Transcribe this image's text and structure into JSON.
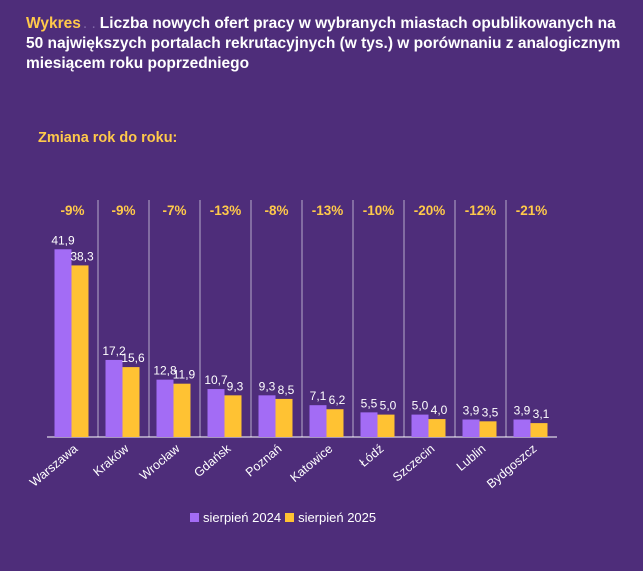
{
  "header": {
    "label": "Wykres",
    "separator": ". .",
    "title": "Liczba nowych ofert pracy w wybranych miastach opublikowanych na 50 największych portalach rekrutacyjnych (w tys.) w porównaniu z analogicznym miesiącem roku poprzedniego"
  },
  "subtitle": "Zmiana rok do roku:",
  "colors": {
    "background": "#4e2d7a",
    "series_2024": "#a36cf5",
    "series_2025": "#ffc233",
    "accent": "#ffc94a"
  },
  "chart_data": {
    "type": "bar",
    "title": "Liczba nowych ofert pracy w wybranych miastach opublikowanych na 50 największych portalach rekrutacyjnych (w tys.)",
    "xlabel": "",
    "ylabel": "",
    "ylim": [
      0,
      45
    ],
    "categories": [
      "Warszawa",
      "Kraków",
      "Wrocław",
      "Gdańsk",
      "Poznań",
      "Katowice",
      "Łódź",
      "Szczecin",
      "Lublin",
      "Bydgoszcz"
    ],
    "series": [
      {
        "name": "sierpień 2024",
        "values": [
          41.9,
          17.2,
          12.8,
          10.7,
          9.3,
          7.1,
          5.5,
          5.0,
          3.9,
          3.9
        ],
        "labels": [
          "41,9",
          "17,2",
          "12,8",
          "10,7",
          "9,3",
          "7,1",
          "5,5",
          "5,0",
          "3,9",
          "3,9"
        ]
      },
      {
        "name": "sierpień 2025",
        "values": [
          38.3,
          15.6,
          11.9,
          9.3,
          8.5,
          6.2,
          5.0,
          4.0,
          3.5,
          3.1
        ],
        "labels": [
          "38,3",
          "15,6",
          "11,9",
          "9,3",
          "8,5",
          "6,2",
          "5,0",
          "4,0",
          "3,5",
          "3,1"
        ]
      }
    ],
    "yoy_change": [
      "-9%",
      "-9%",
      "-7%",
      "-13%",
      "-8%",
      "-13%",
      "-10%",
      "-20%",
      "-12%",
      "-21%"
    ],
    "legend_position": "bottom"
  }
}
